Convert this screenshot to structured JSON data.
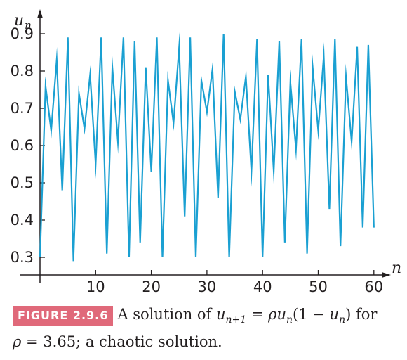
{
  "chart_data": {
    "type": "line",
    "x_axis_label": "n",
    "y_axis_label_main": "u",
    "y_axis_label_sub": "n",
    "xlim": [
      0,
      62
    ],
    "ylim": [
      0.25,
      0.95
    ],
    "x_ticks": [
      10,
      20,
      30,
      40,
      50,
      60
    ],
    "y_ticks": [
      0.3,
      0.4,
      0.5,
      0.6,
      0.7,
      0.8,
      0.9
    ],
    "x_tick_labels": [
      "10",
      "20",
      "30",
      "40",
      "50",
      "60"
    ],
    "y_tick_labels": [
      "0.3",
      "0.4",
      "0.5",
      "0.6",
      "0.7",
      "0.8",
      "0.9"
    ],
    "grid": false,
    "series": [
      {
        "color": "#1aa0d2",
        "x": [
          0,
          1,
          2,
          3,
          4,
          5,
          6,
          7,
          8,
          9,
          10,
          11,
          12,
          13,
          14,
          15,
          16,
          17,
          18,
          19,
          20,
          21,
          22,
          23,
          24,
          25,
          26,
          27,
          28,
          29,
          30,
          31,
          32,
          33,
          34,
          35,
          36,
          37,
          38,
          39,
          40,
          41,
          42,
          43,
          44,
          45,
          46,
          47,
          48,
          49,
          50,
          51,
          52,
          53,
          54,
          55,
          56,
          57,
          58,
          59,
          60
        ],
        "y": [
          0.3,
          0.76,
          0.64,
          0.83,
          0.48,
          0.89,
          0.29,
          0.74,
          0.645,
          0.79,
          0.55,
          0.89,
          0.31,
          0.81,
          0.61,
          0.89,
          0.3,
          0.88,
          0.34,
          0.81,
          0.53,
          0.89,
          0.3,
          0.775,
          0.66,
          0.865,
          0.41,
          0.89,
          0.3,
          0.775,
          0.69,
          0.805,
          0.46,
          0.9,
          0.3,
          0.745,
          0.67,
          0.785,
          0.53,
          0.885,
          0.3,
          0.79,
          0.53,
          0.88,
          0.34,
          0.77,
          0.59,
          0.885,
          0.31,
          0.81,
          0.64,
          0.84,
          0.43,
          0.885,
          0.33,
          0.785,
          0.61,
          0.865,
          0.38,
          0.87,
          0.38
        ]
      }
    ]
  },
  "caption": {
    "badge": "FIGURE 2.9.6",
    "line1_prefix": "A solution of ",
    "line1_mid": " = ",
    "line1_rho": "ρ",
    "line1_u": "u",
    "line1_sub_n": "n",
    "line1_paren": "(1 − ",
    "line1_close": ") for",
    "line2_rho": "ρ",
    "line2_rest": " = 3.65; a chaotic solution.",
    "u_sub_next": "n+1"
  }
}
